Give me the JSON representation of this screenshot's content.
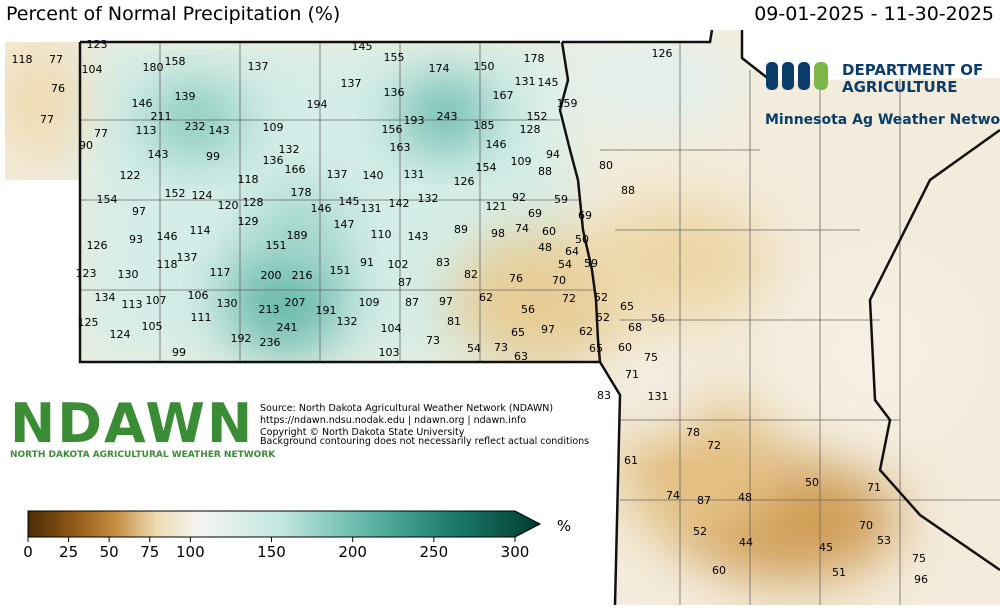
{
  "header": {
    "title": "Percent of Normal Precipitation (%)",
    "date_range": "09-01-2025 - 11-30-2025"
  },
  "logos": {
    "mn_line1": "DEPARTMENT OF",
    "mn_line2": "AGRICULTURE",
    "mn_network": "Minnesota Ag Weather Network",
    "ndawn": "NDAWN",
    "ndawn_subtitle": "NORTH DAKOTA AGRICULTURAL WEATHER NETWORK"
  },
  "source": [
    "Source: North Dakota Agricultural Weather Network (NDAWN)",
    "https://ndawn.ndsu.nodak.edu | ndawn.org | ndawn.info",
    "Copyright © North Dakota State University",
    "Background contouring does not necessarily reflect actual conditions"
  ],
  "map": {
    "stations": [
      118,
      77,
      123,
      104,
      180,
      158,
      137,
      145,
      155,
      174,
      150,
      178,
      126,
      76,
      137,
      136,
      131,
      145,
      167,
      159,
      146,
      139,
      194,
      243,
      77,
      211,
      232,
      143,
      113,
      109,
      156,
      193,
      185,
      152,
      128,
      77,
      90,
      132,
      163,
      146,
      94,
      143,
      99,
      136,
      166,
      109,
      88,
      80,
      122,
      118,
      137,
      140,
      131,
      126,
      154,
      88,
      154,
      152,
      124,
      178,
      145,
      142,
      132,
      92,
      59,
      120,
      128,
      97,
      146,
      131,
      121,
      69,
      69,
      129,
      147,
      114,
      89,
      98,
      74,
      60,
      93,
      146,
      189,
      110,
      143,
      50,
      126,
      151,
      48,
      64,
      137,
      118,
      91,
      102,
      83,
      54,
      59,
      123,
      130,
      117,
      200,
      216,
      151,
      82,
      76,
      87,
      70,
      134,
      106,
      107,
      113,
      62,
      72,
      52,
      65,
      130,
      207,
      109,
      87,
      97,
      56,
      213,
      191,
      111,
      81,
      52,
      68,
      56,
      125,
      105,
      241,
      132,
      104,
      65,
      97,
      62,
      124,
      192,
      236,
      73,
      54,
      73,
      65,
      60,
      99,
      103,
      63,
      75,
      71,
      83,
      131,
      78,
      72,
      61,
      50,
      71,
      74,
      87,
      48,
      52,
      70,
      44,
      45,
      53,
      75,
      60,
      51,
      96
    ],
    "colorbar": {
      "lim": [
        0,
        300
      ],
      "ticks": [
        0,
        25,
        50,
        75,
        100,
        150,
        200,
        250,
        300
      ],
      "unit": "%"
    }
  }
}
